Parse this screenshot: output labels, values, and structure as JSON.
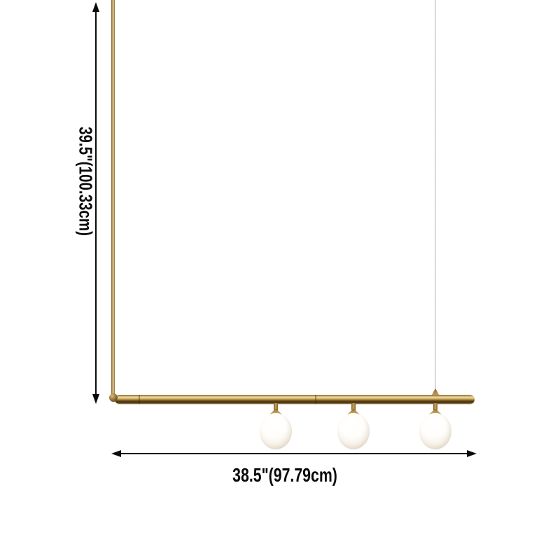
{
  "image": {
    "type": "product-dimension-diagram",
    "product": "linear-pendant-chandelier-3-globes",
    "globe_count": 3
  },
  "annotations": {
    "height_label": "39.5\"(100.33cm)",
    "width_label": "38.5\"(97.79cm)"
  },
  "colors": {
    "brass": "#b08d4a",
    "brass_highlight": "#ecdcae",
    "brass_shadow": "#3a2a10",
    "globe_white": "#ffffff",
    "globe_shade": "#e9dfcd",
    "cable_gray": "#d6d6d6",
    "dimension_black": "#0a0a0a",
    "background": "#ffffff"
  }
}
